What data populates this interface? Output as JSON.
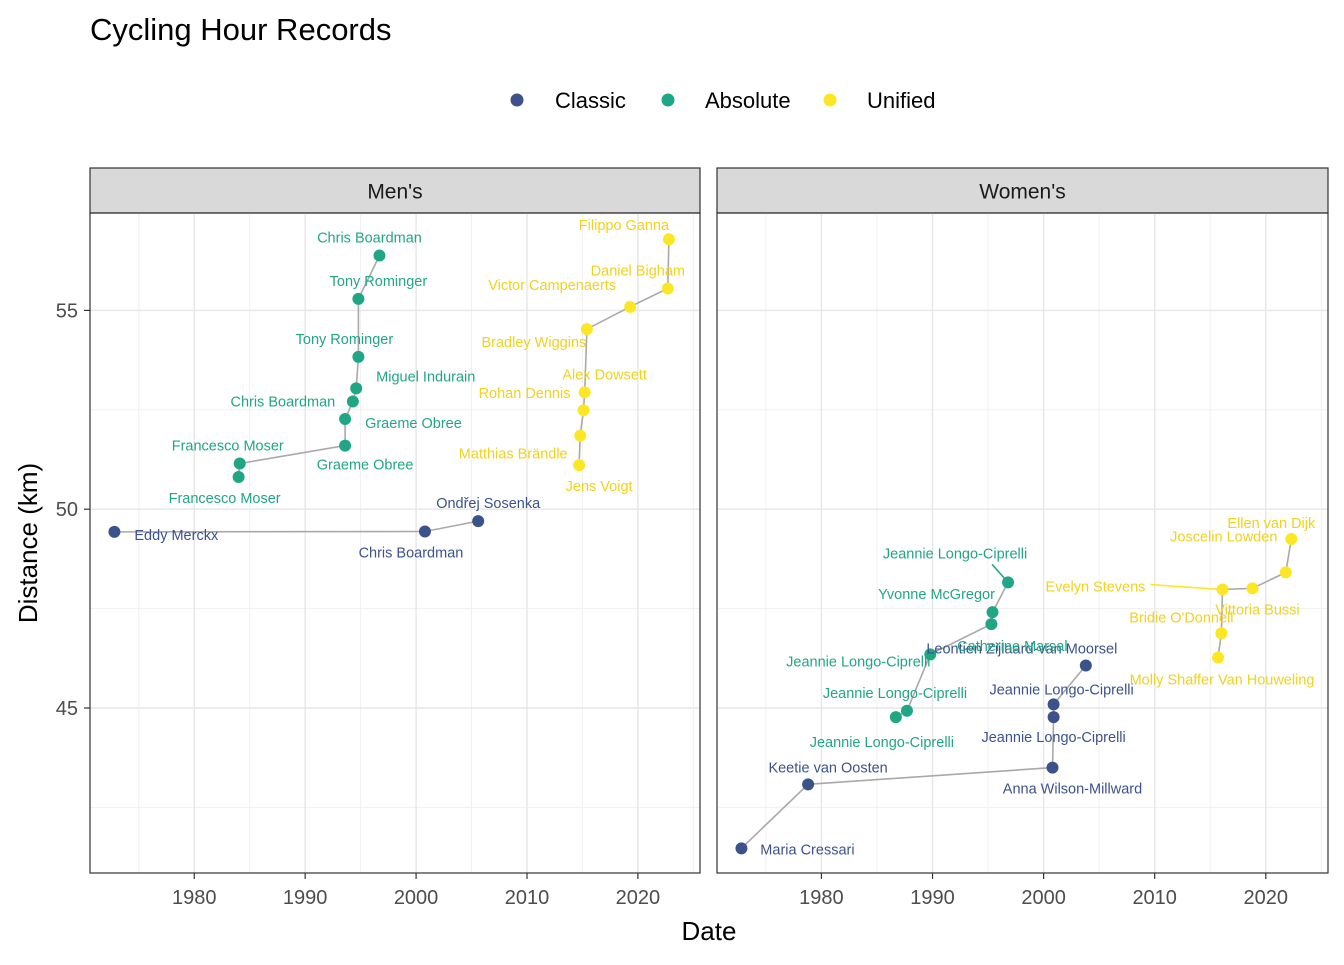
{
  "chart_data": {
    "type": "scatter",
    "title": "Cycling Hour Records",
    "xlabel": "Date",
    "ylabel": "Distance (km)",
    "legend": {
      "placement": "top",
      "entries": [
        {
          "name": "Classic",
          "color": "#3b528b"
        },
        {
          "name": "Absolute",
          "color": "#21a685"
        },
        {
          "name": "Unified",
          "color": "#fde725"
        }
      ]
    },
    "line_color": "#a9a9a9",
    "xticks": [
      1980,
      1990,
      2000,
      2010,
      2020
    ],
    "yticks": [
      45,
      50,
      55
    ],
    "grid": true,
    "panels": [
      {
        "id": "mens",
        "label": "Men's",
        "xlim": [
          1970.6,
          2025.6
        ],
        "ylim": [
          40.85,
          57.45
        ],
        "series": [
          {
            "name": "Classic",
            "points": [
              {
                "x": 1972.8,
                "y": 49.43,
                "label": "Eddy Merckx"
              },
              {
                "x": 2000.8,
                "y": 49.44,
                "label": "Chris Boardman"
              },
              {
                "x": 2005.6,
                "y": 49.7,
                "label": "Ondřej Sosenka"
              }
            ]
          },
          {
            "name": "Absolute",
            "points": [
              {
                "x": 1984.0,
                "y": 50.81,
                "label": "Francesco Moser"
              },
              {
                "x": 1984.1,
                "y": 51.15,
                "label": "Francesco Moser"
              },
              {
                "x": 1993.6,
                "y": 51.6,
                "label": "Graeme Obree"
              },
              {
                "x": 1993.6,
                "y": 52.27,
                "label": "Graeme Obree"
              },
              {
                "x": 1994.3,
                "y": 52.71,
                "label": "Chris Boardman"
              },
              {
                "x": 1994.6,
                "y": 53.04,
                "label": "Miguel Indurain"
              },
              {
                "x": 1994.8,
                "y": 53.83,
                "label": "Tony Rominger"
              },
              {
                "x": 1994.8,
                "y": 55.29,
                "label": "Tony Rominger"
              },
              {
                "x": 1996.7,
                "y": 56.38,
                "label": "Chris Boardman"
              }
            ]
          },
          {
            "name": "Unified",
            "points": [
              {
                "x": 2014.7,
                "y": 51.11,
                "label": "Jens Voigt"
              },
              {
                "x": 2014.8,
                "y": 51.85,
                "label": "Matthias Brändle"
              },
              {
                "x": 2015.1,
                "y": 52.49,
                "label": "Rohan Dennis"
              },
              {
                "x": 2015.2,
                "y": 52.94,
                "label": "Alex Dowsett"
              },
              {
                "x": 2015.4,
                "y": 54.53,
                "label": "Bradley Wiggins"
              },
              {
                "x": 2019.3,
                "y": 55.09,
                "label": "Victor Campenaerts"
              },
              {
                "x": 2022.7,
                "y": 55.55,
                "label": "Daniel Bigham"
              },
              {
                "x": 2022.8,
                "y": 56.79,
                "label": "Filippo Ganna"
              }
            ]
          }
        ]
      },
      {
        "id": "womens",
        "label": "Women's",
        "xlim": [
          1970.6,
          2025.6
        ],
        "ylim": [
          40.85,
          57.45
        ],
        "series": [
          {
            "name": "Classic",
            "points": [
              {
                "x": 1972.8,
                "y": 41.47,
                "label": "Maria Cressari"
              },
              {
                "x": 1978.8,
                "y": 43.08,
                "label": "Keetie van Oosten"
              },
              {
                "x": 2000.8,
                "y": 43.5,
                "label": "Anna Wilson-Millward"
              },
              {
                "x": 2000.9,
                "y": 44.77,
                "label": "Jeannie Longo-Ciprelli"
              },
              {
                "x": 2000.9,
                "y": 45.09,
                "label": "Jeannie Longo-Ciprelli"
              },
              {
                "x": 2003.8,
                "y": 46.07,
                "label": "Leontien Zijlaard-van Moorsel"
              }
            ]
          },
          {
            "name": "Absolute",
            "points": [
              {
                "x": 1986.7,
                "y": 44.77,
                "label": "Jeannie Longo-Ciprelli"
              },
              {
                "x": 1987.7,
                "y": 44.93,
                "label": "Jeannie Longo-Ciprelli"
              },
              {
                "x": 1989.8,
                "y": 46.35,
                "label": "Jeannie Longo-Ciprelli"
              },
              {
                "x": 1995.3,
                "y": 47.11,
                "label": "Catherine Marsal"
              },
              {
                "x": 1995.4,
                "y": 47.41,
                "label": "Yvonne McGregor"
              },
              {
                "x": 1996.8,
                "y": 48.16,
                "label": "Jeannie Longo-Ciprelli"
              }
            ]
          },
          {
            "name": "Unified",
            "points": [
              {
                "x": 2015.7,
                "y": 46.27,
                "label": "Molly Shaffer Van Houweling"
              },
              {
                "x": 2016.0,
                "y": 46.88,
                "label": "Bridie O'Donnell"
              },
              {
                "x": 2016.1,
                "y": 47.98,
                "label": "Evelyn Stevens"
              },
              {
                "x": 2018.8,
                "y": 48.01,
                "label": "Vittoria Bussi"
              },
              {
                "x": 2021.8,
                "y": 48.41,
                "label": "Joscelin Lowden"
              },
              {
                "x": 2022.3,
                "y": 49.25,
                "label": "Ellen van Dijk"
              }
            ]
          }
        ]
      }
    ]
  }
}
